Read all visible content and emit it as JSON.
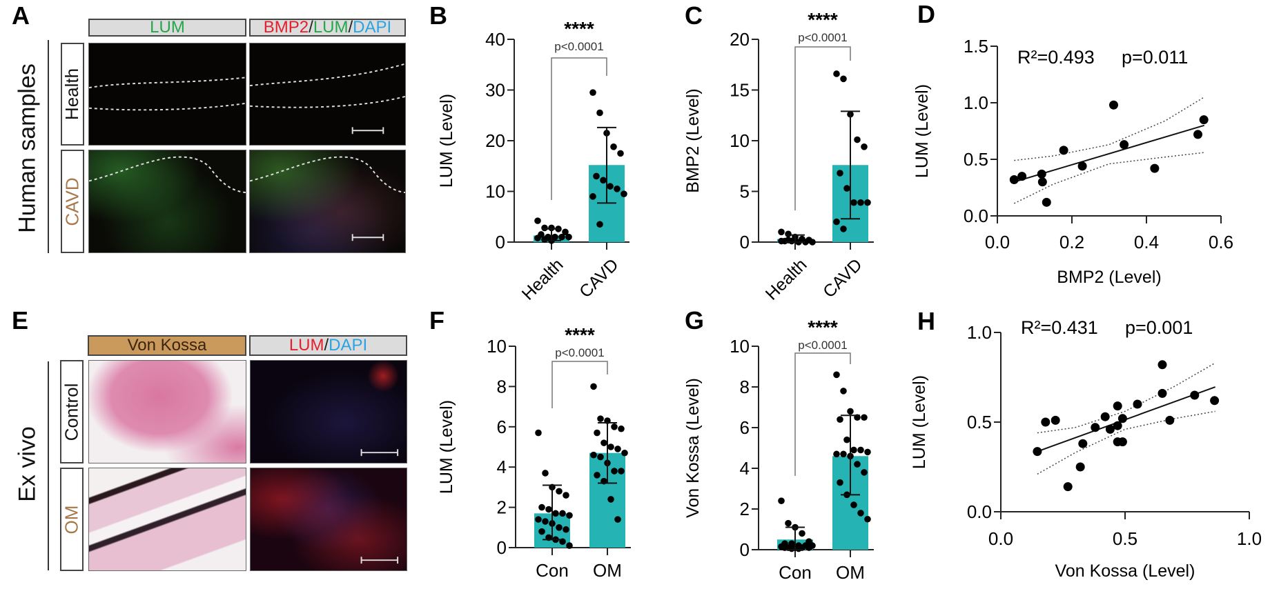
{
  "panel_A": {
    "letter": "A",
    "side_label": "Human samples",
    "col_headers": [
      {
        "parts": [
          {
            "text": "LUM",
            "color": "#22a84a"
          }
        ]
      },
      {
        "parts": [
          {
            "text": "BMP2",
            "color": "#e3202c"
          },
          {
            "text": "/",
            "color": "#222222"
          },
          {
            "text": "LUM",
            "color": "#22a84a"
          },
          {
            "text": "/",
            "color": "#222222"
          },
          {
            "text": "DAPI",
            "color": "#2aa3e2"
          }
        ]
      }
    ],
    "rows": [
      {
        "label": "Health",
        "color": "#111111"
      },
      {
        "label": "CAVD",
        "color": "#a8784a"
      }
    ]
  },
  "panel_E": {
    "letter": "E",
    "side_label": "Ex vivo",
    "col_headers": [
      {
        "parts": [
          {
            "text": "Von Kossa",
            "color": "#3a2410"
          }
        ]
      },
      {
        "parts": [
          {
            "text": "LUM",
            "color": "#e3202c"
          },
          {
            "text": "/",
            "color": "#222222"
          },
          {
            "text": "DAPI",
            "color": "#2aa3e2"
          }
        ]
      }
    ],
    "rows": [
      {
        "label": "Control",
        "color": "#111111"
      },
      {
        "label": "OM",
        "color": "#a8784a"
      }
    ]
  },
  "chart_data": [
    {
      "id": "B",
      "type": "bar",
      "letter": "B",
      "ylabel": "LUM (Level)",
      "ylim": [
        0,
        40
      ],
      "yticks": [
        "0",
        "10",
        "20",
        "30",
        "40"
      ],
      "categories": [
        "Health",
        "CAVD"
      ],
      "means": [
        1.3,
        15.2
      ],
      "sd_low": [
        0.3,
        7.7
      ],
      "sd_high": [
        2.6,
        22.6
      ],
      "points": [
        [
          4.2,
          2.8,
          2.8,
          2.6,
          2.0,
          1.5,
          1.0,
          1.0,
          1.0,
          1.0,
          0.8,
          0.5,
          0.3
        ],
        [
          29.5,
          25.5,
          21.5,
          18.8,
          17.5,
          13.0,
          12.2,
          11.0,
          10.5,
          9.5,
          9.0,
          3.5
        ]
      ],
      "significance": "****",
      "p_text": "p<0.0001",
      "bar_color": "#25b3b3"
    },
    {
      "id": "C",
      "type": "bar",
      "letter": "C",
      "ylabel": "BMP2 (Level)",
      "ylim": [
        0,
        20
      ],
      "yticks": [
        "0",
        "5",
        "10",
        "15",
        "20"
      ],
      "categories": [
        "Health",
        "CAVD"
      ],
      "means": [
        0.3,
        7.6
      ],
      "sd_low": [
        0.0,
        2.3
      ],
      "sd_high": [
        0.7,
        12.9
      ],
      "points": [
        [
          1.0,
          0.8,
          0.5,
          0.3,
          0.2,
          0.1,
          0.1,
          0.0,
          0.0,
          0.0,
          0.1,
          0.2
        ],
        [
          16.6,
          16.1,
          12.6,
          10.1,
          9.4,
          6.8,
          5.3,
          3.9,
          3.9,
          3.9,
          2.0,
          1.3
        ]
      ],
      "significance": "****",
      "p_text": "p<0.0001",
      "bar_color": "#25b3b3"
    },
    {
      "id": "D",
      "type": "scatter",
      "letter": "D",
      "xlabel": "BMP2 (Level)",
      "ylabel": "LUM (Level)",
      "xlim": [
        0,
        0.6
      ],
      "ylim": [
        0,
        1.5
      ],
      "xticks": [
        "0.0",
        "0.2",
        "0.4",
        "0.6"
      ],
      "yticks": [
        "0.0",
        "0.5",
        "1.0",
        "1.5"
      ],
      "points": [
        [
          0.045,
          0.32
        ],
        [
          0.066,
          0.35
        ],
        [
          0.119,
          0.37
        ],
        [
          0.121,
          0.3
        ],
        [
          0.132,
          0.12
        ],
        [
          0.178,
          0.58
        ],
        [
          0.228,
          0.44
        ],
        [
          0.312,
          0.98
        ],
        [
          0.34,
          0.63
        ],
        [
          0.422,
          0.42
        ],
        [
          0.538,
          0.72
        ],
        [
          0.554,
          0.85
        ]
      ],
      "fit": [
        [
          0.045,
          0.3
        ],
        [
          0.555,
          0.8
        ]
      ],
      "ci_upper": [
        [
          0.045,
          0.49
        ],
        [
          0.15,
          0.53
        ],
        [
          0.3,
          0.63
        ],
        [
          0.45,
          0.84
        ],
        [
          0.555,
          1.05
        ]
      ],
      "ci_lower": [
        [
          0.045,
          0.11
        ],
        [
          0.15,
          0.28
        ],
        [
          0.3,
          0.46
        ],
        [
          0.45,
          0.52
        ],
        [
          0.555,
          0.56
        ]
      ],
      "r2_label": "R²=0.493",
      "p_label": "p=0.011"
    },
    {
      "id": "F",
      "type": "bar",
      "letter": "F",
      "ylabel": "LUM (Level)",
      "ylim": [
        0,
        10
      ],
      "yticks": [
        "0",
        "2",
        "4",
        "6",
        "8",
        "10"
      ],
      "categories": [
        "Con",
        "OM"
      ],
      "means": [
        1.7,
        4.7
      ],
      "sd_low": [
        0.4,
        3.2
      ],
      "sd_high": [
        3.1,
        6.2
      ],
      "points": [
        [
          5.7,
          3.7,
          3.0,
          2.8,
          2.6,
          2.0,
          1.9,
          1.7,
          1.7,
          1.6,
          1.4,
          1.3,
          1.2,
          1.0,
          0.9,
          0.8,
          0.5,
          0.4,
          0.3,
          0.1
        ],
        [
          8.0,
          6.4,
          6.3,
          6.0,
          5.9,
          5.7,
          5.2,
          5.0,
          4.9,
          4.7,
          4.6,
          4.5,
          4.2,
          3.8,
          3.8,
          3.6,
          3.3,
          2.4,
          1.4
        ]
      ],
      "significance": "****",
      "p_text": "p<0.0001",
      "bar_color": "#25b3b3"
    },
    {
      "id": "G",
      "type": "bar",
      "letter": "G",
      "ylabel": "Von Kossa (Level)",
      "ylim": [
        0,
        10
      ],
      "yticks": [
        "0",
        "2",
        "4",
        "6",
        "8",
        "10"
      ],
      "categories": [
        "Con",
        "OM"
      ],
      "means": [
        0.5,
        4.6
      ],
      "sd_low": [
        0.0,
        2.7
      ],
      "sd_high": [
        1.1,
        6.6
      ],
      "points": [
        [
          2.4,
          1.3,
          1.1,
          0.8,
          0.4,
          0.3,
          0.3,
          0.2,
          0.2,
          0.2,
          0.15,
          0.1,
          0.1,
          0.1,
          0.1,
          0.1,
          0.05,
          0.05
        ],
        [
          8.6,
          7.8,
          6.8,
          6.5,
          6.5,
          6.4,
          5.4,
          4.9,
          4.9,
          4.8,
          4.7,
          4.7,
          4.6,
          4.2,
          3.8,
          3.3,
          2.7,
          2.2,
          1.8,
          1.5
        ]
      ],
      "significance": "****",
      "p_text": "p<0.0001",
      "bar_color": "#25b3b3"
    },
    {
      "id": "H",
      "type": "scatter",
      "letter": "H",
      "xlabel": "Von Kossa (Level)",
      "ylabel": "LUM (Level)",
      "xlim": [
        0,
        1.0
      ],
      "ylim": [
        0,
        1.0
      ],
      "xticks": [
        "0.0",
        "0.5",
        "1.0"
      ],
      "yticks": [
        "0.0",
        "0.5",
        "1.0"
      ],
      "points": [
        [
          0.147,
          0.336
        ],
        [
          0.18,
          0.5
        ],
        [
          0.22,
          0.51
        ],
        [
          0.27,
          0.14
        ],
        [
          0.32,
          0.25
        ],
        [
          0.33,
          0.38
        ],
        [
          0.38,
          0.47
        ],
        [
          0.42,
          0.53
        ],
        [
          0.44,
          0.46
        ],
        [
          0.47,
          0.59
        ],
        [
          0.47,
          0.48
        ],
        [
          0.47,
          0.39
        ],
        [
          0.49,
          0.39
        ],
        [
          0.49,
          0.52
        ],
        [
          0.55,
          0.6
        ],
        [
          0.65,
          0.82
        ],
        [
          0.65,
          0.66
        ],
        [
          0.68,
          0.51
        ],
        [
          0.78,
          0.65
        ],
        [
          0.86,
          0.62
        ]
      ],
      "fit": [
        [
          0.147,
          0.336
        ],
        [
          0.863,
          0.696
        ]
      ],
      "ci_upper": [
        [
          0.147,
          0.44
        ],
        [
          0.3,
          0.47
        ],
        [
          0.5,
          0.56
        ],
        [
          0.7,
          0.7
        ],
        [
          0.863,
          0.83
        ]
      ],
      "ci_lower": [
        [
          0.147,
          0.21
        ],
        [
          0.3,
          0.33
        ],
        [
          0.5,
          0.46
        ],
        [
          0.7,
          0.52
        ],
        [
          0.863,
          0.56
        ]
      ],
      "r2_label": "R²=0.431",
      "p_label": "p=0.001"
    }
  ]
}
